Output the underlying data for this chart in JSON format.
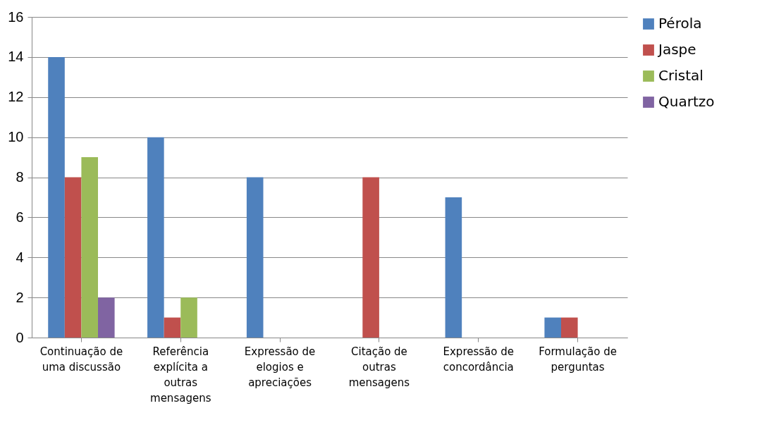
{
  "chart_data": {
    "type": "bar",
    "categories": [
      "Continuação de uma discussão",
      "Referência explícita a outras mensagens",
      "Expressão de elogios e apreciações",
      "Citação de outras mensagens",
      "Expressão de concordância",
      "Formulação de perguntas"
    ],
    "series": [
      {
        "name": "Pérola",
        "color": "#4f81bd",
        "values": [
          14,
          10,
          8,
          0,
          7,
          1
        ]
      },
      {
        "name": "Jaspe",
        "color": "#c0504d",
        "values": [
          8,
          1,
          0,
          8,
          0,
          1
        ]
      },
      {
        "name": "Cristal",
        "color": "#9bbb59",
        "values": [
          9,
          2,
          0,
          0,
          0,
          0
        ]
      },
      {
        "name": "Quartzo",
        "color": "#8064a2",
        "values": [
          2,
          0,
          0,
          0,
          0,
          0
        ]
      }
    ],
    "ylim": [
      0,
      16
    ],
    "yticks": [
      0,
      2,
      4,
      6,
      8,
      10,
      12,
      14,
      16
    ],
    "grid": "y",
    "legend": "right"
  }
}
